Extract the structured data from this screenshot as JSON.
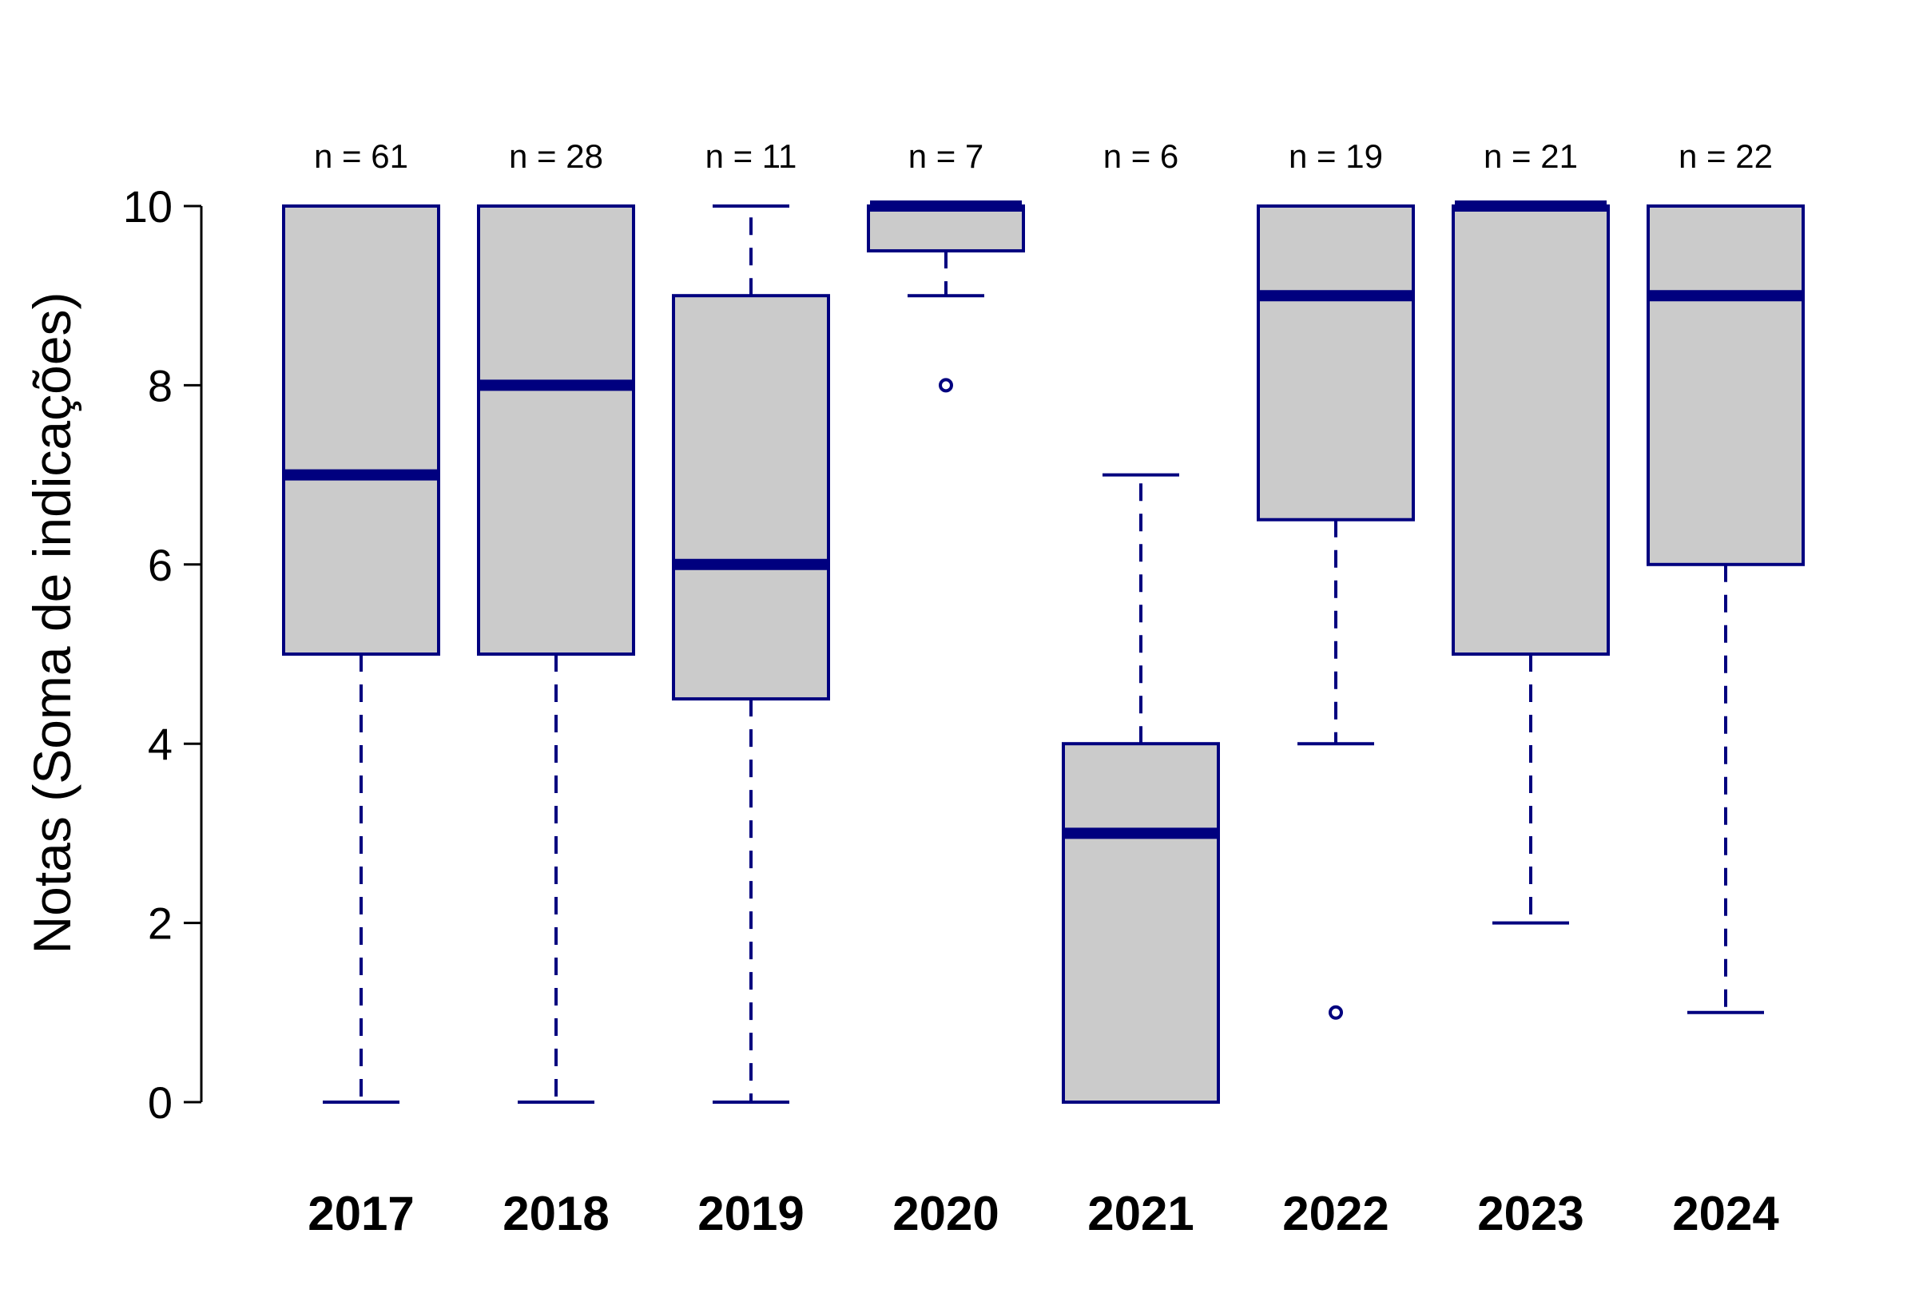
{
  "chart_data": {
    "type": "box",
    "ylabel": "Notas (Soma de indicações)",
    "xlabel": "",
    "ylim": [
      0,
      10
    ],
    "yticks": [
      0,
      2,
      4,
      6,
      8,
      10
    ],
    "box_fill": "#cbcbcb",
    "line_color": "#00007f",
    "categories": [
      "2017",
      "2018",
      "2019",
      "2020",
      "2021",
      "2022",
      "2023",
      "2024"
    ],
    "n_labels": [
      "n = 61",
      "n = 28",
      "n = 11",
      "n = 7",
      "n = 6",
      "n = 19",
      "n = 21",
      "n = 22"
    ],
    "boxes": [
      {
        "whisker_low": 0,
        "q1": 5,
        "median": 7,
        "q3": 10,
        "whisker_high": 10,
        "outliers": []
      },
      {
        "whisker_low": 0,
        "q1": 5,
        "median": 8,
        "q3": 10,
        "whisker_high": 10,
        "outliers": []
      },
      {
        "whisker_low": 0,
        "q1": 4.5,
        "median": 6,
        "q3": 9,
        "whisker_high": 10,
        "outliers": []
      },
      {
        "whisker_low": 9,
        "q1": 9.5,
        "median": 10,
        "q3": 10,
        "whisker_high": 10,
        "outliers": [
          8
        ]
      },
      {
        "whisker_low": 0,
        "q1": 0,
        "median": 3,
        "q3": 4,
        "whisker_high": 7,
        "outliers": []
      },
      {
        "whisker_low": 4,
        "q1": 6.5,
        "median": 9,
        "q3": 10,
        "whisker_high": 10,
        "outliers": [
          1
        ]
      },
      {
        "whisker_low": 2,
        "q1": 5,
        "median": 10,
        "q3": 10,
        "whisker_high": 10,
        "outliers": []
      },
      {
        "whisker_low": 1,
        "q1": 6,
        "median": 9,
        "q3": 10,
        "whisker_high": 10,
        "outliers": []
      }
    ]
  }
}
